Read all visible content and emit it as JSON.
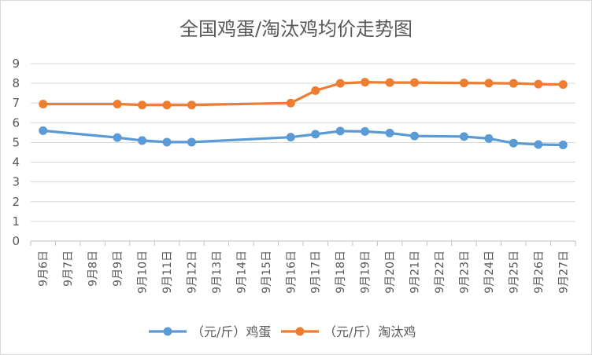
{
  "chart_data": {
    "type": "line",
    "title": "全国鸡蛋/淘汰鸡均价走势图",
    "xlabel": "",
    "ylabel": "",
    "ylim": [
      0,
      9
    ],
    "yticks": [
      "0",
      "1",
      "2",
      "3",
      "4",
      "5",
      "6",
      "7",
      "8",
      "9"
    ],
    "grid": true,
    "legend_position": "bottom",
    "categories": [
      "9月6日",
      "9月7日",
      "9月8日",
      "9月9日",
      "9月10日",
      "9月11日",
      "9月12日",
      "9月13日",
      "9月14日",
      "9月15日",
      "9月16日",
      "9月17日",
      "9月18日",
      "9月19日",
      "9月20日",
      "9月21日",
      "9月22日",
      "9月23日",
      "9月24日",
      "9月25日",
      "9月26日",
      "9月27日"
    ],
    "series": [
      {
        "name": "（元/斤）鸡蛋",
        "color": "#5b9bd5",
        "values": [
          5.6,
          null,
          null,
          5.25,
          5.1,
          5.02,
          5.02,
          null,
          null,
          null,
          5.27,
          5.42,
          5.58,
          5.56,
          5.48,
          5.33,
          null,
          5.3,
          5.2,
          4.97,
          4.9,
          4.88
        ]
      },
      {
        "name": "（元/斤）淘汰鸡",
        "color": "#ed7d31",
        "values": [
          6.95,
          null,
          null,
          6.95,
          6.9,
          6.9,
          6.9,
          null,
          null,
          null,
          7.0,
          7.63,
          8.0,
          8.06,
          8.04,
          8.04,
          null,
          8.02,
          8.01,
          8.0,
          7.96,
          7.94
        ]
      }
    ]
  }
}
